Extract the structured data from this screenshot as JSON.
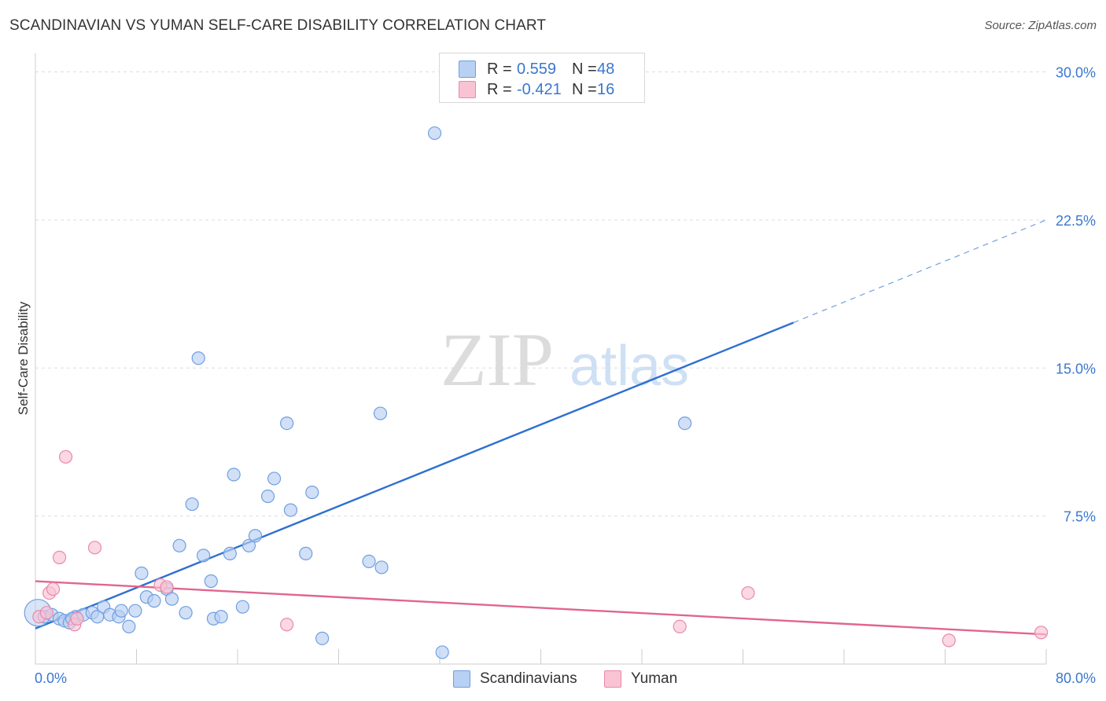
{
  "title": "SCANDINAVIAN VS YUMAN SELF-CARE DISABILITY CORRELATION CHART",
  "source": "Source: ZipAtlas.com",
  "watermark": {
    "zip": "ZIP",
    "atlas": "atlas"
  },
  "legend": {
    "rows": [
      {
        "r_label": "R =",
        "r_value": "0.559",
        "n_label": "N =",
        "n_value": "48",
        "color": "#b8d0f3",
        "stroke": "#6f9fe0"
      },
      {
        "r_label": "R =",
        "r_value": "-0.421",
        "n_label": "N =",
        "n_value": "16",
        "color": "#f9c3d4",
        "stroke": "#e88aa8"
      }
    ]
  },
  "bottom_legend": [
    {
      "label": "Scandinavians",
      "color": "#b8d0f3",
      "stroke": "#6f9fe0"
    },
    {
      "label": "Yuman",
      "color": "#f9c3d4",
      "stroke": "#e88aa8"
    }
  ],
  "chart_data": {
    "type": "scatter",
    "title": "SCANDINAVIAN VS YUMAN SELF-CARE DISABILITY CORRELATION CHART",
    "xlabel": "",
    "ylabel": "Self-Care Disability",
    "xlim": [
      0,
      80
    ],
    "ylim": [
      0,
      30.5
    ],
    "x_tick_labels": [
      "0.0%",
      "80.0%"
    ],
    "y_ticks": [
      7.5,
      15.0,
      22.5,
      30.0
    ],
    "y_tick_labels": [
      "7.5%",
      "15.0%",
      "22.5%",
      "30.0%"
    ],
    "grid": true,
    "series": [
      {
        "name": "Scandinavians",
        "color": "#6f9fe0",
        "fill": "#b8d0f3",
        "points": [
          [
            0.2,
            2.6
          ],
          [
            0.7,
            2.4
          ],
          [
            1.3,
            2.5
          ],
          [
            1.9,
            2.3
          ],
          [
            2.3,
            2.2
          ],
          [
            2.7,
            2.1
          ],
          [
            3.2,
            2.4
          ],
          [
            3.8,
            2.5
          ],
          [
            4.5,
            2.6
          ],
          [
            4.9,
            2.4
          ],
          [
            5.4,
            2.9
          ],
          [
            5.9,
            2.5
          ],
          [
            6.6,
            2.4
          ],
          [
            6.8,
            2.7
          ],
          [
            7.4,
            1.9
          ],
          [
            7.9,
            2.7
          ],
          [
            8.4,
            4.6
          ],
          [
            8.8,
            3.4
          ],
          [
            9.4,
            3.2
          ],
          [
            10.4,
            3.8
          ],
          [
            10.8,
            3.3
          ],
          [
            11.4,
            6.0
          ],
          [
            11.9,
            2.6
          ],
          [
            12.4,
            8.1
          ],
          [
            12.9,
            15.5
          ],
          [
            13.3,
            5.5
          ],
          [
            13.9,
            4.2
          ],
          [
            14.1,
            2.3
          ],
          [
            14.7,
            2.4
          ],
          [
            15.4,
            5.6
          ],
          [
            15.7,
            9.6
          ],
          [
            16.4,
            2.9
          ],
          [
            16.9,
            6.0
          ],
          [
            17.4,
            6.5
          ],
          [
            18.4,
            8.5
          ],
          [
            18.9,
            9.4
          ],
          [
            19.9,
            12.2
          ],
          [
            20.2,
            7.8
          ],
          [
            21.4,
            5.6
          ],
          [
            21.9,
            8.7
          ],
          [
            22.7,
            1.3
          ],
          [
            26.4,
            5.2
          ],
          [
            27.3,
            12.7
          ],
          [
            27.4,
            4.9
          ],
          [
            31.6,
            26.9
          ],
          [
            32.2,
            0.6
          ],
          [
            51.4,
            12.2
          ],
          [
            2.9,
            2.3
          ]
        ],
        "trendline": {
          "x": [
            0,
            60,
            80
          ],
          "y": [
            1.8,
            17.3,
            22.5
          ],
          "dashed_from_x": 60
        }
      },
      {
        "name": "Yuman",
        "color": "#e88aa8",
        "fill": "#f9c3d4",
        "points": [
          [
            0.3,
            2.4
          ],
          [
            1.1,
            3.6
          ],
          [
            1.4,
            3.8
          ],
          [
            1.9,
            5.4
          ],
          [
            2.4,
            10.5
          ],
          [
            3.1,
            2.0
          ],
          [
            3.3,
            2.3
          ],
          [
            4.7,
            5.9
          ],
          [
            9.9,
            4.0
          ],
          [
            10.4,
            3.9
          ],
          [
            19.9,
            2.0
          ],
          [
            51.0,
            1.9
          ],
          [
            56.4,
            3.6
          ],
          [
            72.3,
            1.2
          ],
          [
            79.6,
            1.6
          ],
          [
            0.9,
            2.6
          ]
        ],
        "trendline": {
          "x": [
            0,
            80
          ],
          "y": [
            4.2,
            1.5
          ]
        }
      }
    ]
  }
}
